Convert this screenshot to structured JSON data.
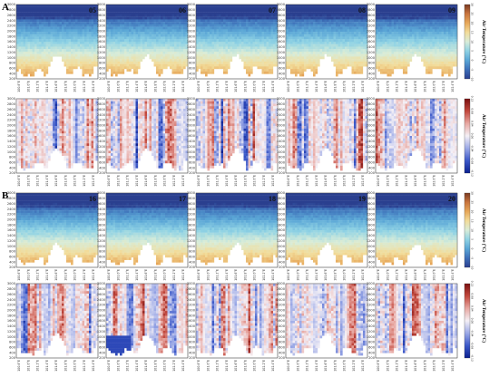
{
  "figure": {
    "section_labels": [
      "A",
      "B"
    ],
    "colorbar_label": "Air Temperature (°C)"
  },
  "chart_data": [
    {
      "type": "heatmap",
      "group": "A",
      "kind": "absolute",
      "panels": [
        "05",
        "06",
        "07",
        "08",
        "09"
      ],
      "y_ticks": [
        "200",
        "400",
        "600",
        "800",
        "1000",
        "1200",
        "1400",
        "1600",
        "1800",
        "2000",
        "2200",
        "2400",
        "2600",
        "2800",
        "3000"
      ],
      "x_ticks": [
        "100.8°E",
        "101.0°E",
        "101.2°E",
        "101.4°E",
        "101.6°E",
        "101.8°E",
        "102.0°E",
        "102.2°E",
        "102.4°E"
      ],
      "colorbar_ticks": [
        "-10",
        "-5",
        "0",
        "5",
        "10",
        "15",
        "20",
        "25",
        "30"
      ],
      "colormap": [
        "#2a3f8f",
        "#3d6fb8",
        "#5aa6d6",
        "#8fd2e4",
        "#d8ecd8",
        "#f2dc9a",
        "#e7a85a",
        "#c9753e",
        "#7a3a22"
      ]
    },
    {
      "type": "heatmap",
      "group": "A",
      "kind": "anomaly",
      "panels": [
        "05",
        "06",
        "07",
        "08",
        "09"
      ],
      "y_ticks": [
        "200",
        "400",
        "600",
        "800",
        "1000",
        "1200",
        "1400",
        "1600",
        "1800",
        "2000",
        "2200",
        "2400",
        "2600",
        "2800",
        "3000"
      ],
      "x_ticks": [
        "100.8°E",
        "101.0°E",
        "101.2°E",
        "101.4°E",
        "101.6°E",
        "101.8°E",
        "102.0°E",
        "102.2°E",
        "102.4°E"
      ],
      "colorbar_ticks": [
        "-0.12",
        "-0.08",
        "-0.04",
        "0.00",
        "0.04",
        "0.08",
        "0.12"
      ],
      "colormap": [
        "#0a1f8f",
        "#3b58c8",
        "#9aa8e6",
        "#f4f0f6",
        "#e8a8a2",
        "#c2483d",
        "#7a1010"
      ]
    },
    {
      "type": "heatmap",
      "group": "B",
      "kind": "absolute",
      "panels": [
        "16",
        "17",
        "18",
        "19",
        "20"
      ],
      "y_ticks": [
        "200",
        "400",
        "600",
        "800",
        "1000",
        "1200",
        "1400",
        "1600",
        "1800",
        "2000",
        "2200",
        "2400",
        "2600",
        "2800",
        "3000"
      ],
      "x_ticks": [
        "100.8°E",
        "101.0°E",
        "101.2°E",
        "101.4°E",
        "101.6°E",
        "101.8°E",
        "102.0°E",
        "102.2°E",
        "102.4°E"
      ],
      "colorbar_ticks": [
        "-10",
        "-5",
        "0",
        "5",
        "10",
        "15",
        "20",
        "25",
        "30"
      ],
      "colormap": [
        "#2a3f8f",
        "#3d6fb8",
        "#5aa6d6",
        "#8fd2e4",
        "#d8ecd8",
        "#f2dc9a",
        "#e7a85a",
        "#c9753e",
        "#7a3a22"
      ]
    },
    {
      "type": "heatmap",
      "group": "B",
      "kind": "anomaly",
      "panels": [
        "16",
        "17",
        "18",
        "19",
        "20"
      ],
      "y_ticks": [
        "200",
        "400",
        "600",
        "800",
        "1000",
        "1200",
        "1400",
        "1600",
        "1800",
        "2000",
        "2200",
        "2400",
        "2600",
        "2800",
        "3000"
      ],
      "x_ticks": [
        "100.8°E",
        "101.0°E",
        "101.2°E",
        "101.4°E",
        "101.6°E",
        "101.8°E",
        "102.0°E",
        "102.2°E",
        "102.4°E"
      ],
      "colorbar_ticks": [
        "-0.12",
        "-0.08",
        "-0.04",
        "0.00",
        "0.04",
        "0.08",
        "0.12"
      ],
      "colormap": [
        "#0a1f8f",
        "#3b58c8",
        "#9aa8e6",
        "#f4f0f6",
        "#e8a8a2",
        "#c2483d",
        "#7a1010"
      ]
    }
  ]
}
